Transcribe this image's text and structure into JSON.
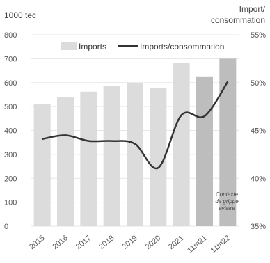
{
  "chart_data": {
    "type": "bar",
    "categories": [
      "2015",
      "2016",
      "2017",
      "2018",
      "2019",
      "2020",
      "2021",
      "11m21",
      "11m22"
    ],
    "series": [
      {
        "name": "Imports",
        "type": "bar",
        "axis": "left",
        "values": [
          510,
          538,
          562,
          585,
          598,
          578,
          683,
          626,
          700
        ],
        "color": "#dcdcdc",
        "highlight_color": "#bdbdbd",
        "highlighted": [
          "11m21",
          "11m22"
        ]
      },
      {
        "name": "Imports/consommation",
        "type": "line",
        "axis": "right",
        "values": [
          44.1,
          44.5,
          43.9,
          43.9,
          43.6,
          41.1,
          46.6,
          46.5,
          50.1
        ],
        "color": "#333333"
      }
    ],
    "y_left": {
      "title": "1000 tec",
      "ylim": [
        0,
        800
      ],
      "ticks": [
        "0",
        "100",
        "200",
        "300",
        "400",
        "500",
        "600",
        "700",
        "800"
      ]
    },
    "y_right": {
      "title_line1": "Import/",
      "title_line2": "consommation",
      "ylim": [
        35,
        55
      ],
      "ticks": [
        "35%",
        "40%",
        "45%",
        "50%",
        "55%"
      ]
    },
    "annotation": {
      "lines": [
        "Contexte",
        "de grippe",
        "aviaire"
      ]
    },
    "grid": true,
    "legend": "top"
  }
}
